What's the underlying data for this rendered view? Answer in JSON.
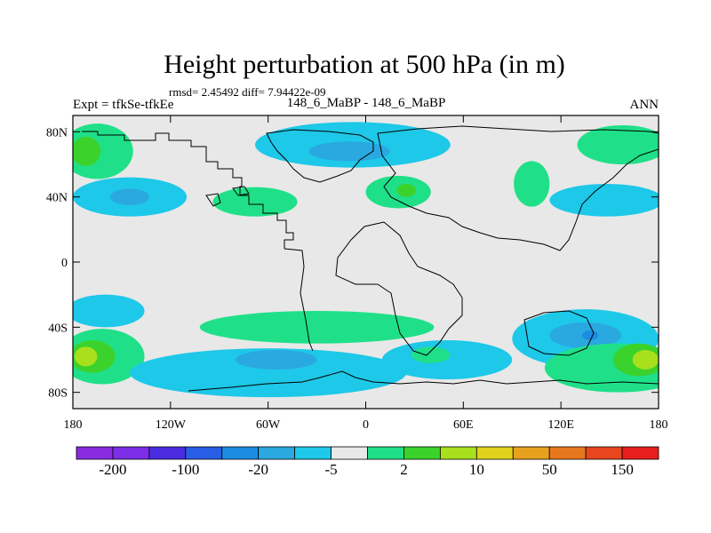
{
  "chart_data": {
    "type": "heatmap",
    "title": "Height perturbation at 500 hPa (in m)",
    "stats": "rmsd= 2.45492 diff= 7.94422e-09",
    "left_label": "Expt = tfkSe-tfkEe",
    "center_label": "148_6_MaBP - 148_6_MaBP",
    "right_label": "ANN",
    "x_range": [
      -180,
      180
    ],
    "y_range": [
      -90,
      90
    ],
    "x_ticks": [
      {
        "value": -180,
        "label": "180"
      },
      {
        "value": -120,
        "label": "120W"
      },
      {
        "value": -60,
        "label": "60W"
      },
      {
        "value": 0,
        "label": "0"
      },
      {
        "value": 60,
        "label": "60E"
      },
      {
        "value": 120,
        "label": "120E"
      },
      {
        "value": 180,
        "label": "180"
      }
    ],
    "y_ticks": [
      {
        "value": 80,
        "label": "80N"
      },
      {
        "value": 40,
        "label": "40N"
      },
      {
        "value": 0,
        "label": "0"
      },
      {
        "value": -40,
        "label": "40S"
      },
      {
        "value": -80,
        "label": "80S"
      }
    ],
    "colorbar": {
      "colors": [
        "#8a2be2",
        "#7b2ee6",
        "#4b2be0",
        "#2a5de6",
        "#1b8de0",
        "#2aa8e0",
        "#1ec8e8",
        "#e8e8e8",
        "#1fe088",
        "#3cd22c",
        "#a8e01e",
        "#e0d21e",
        "#e8a11e",
        "#e8781e",
        "#e8461e",
        "#e81e1e"
      ],
      "labels": [
        {
          "index": 1,
          "label": "-200"
        },
        {
          "index": 3,
          "label": "-100"
        },
        {
          "index": 5,
          "label": "-20"
        },
        {
          "index": 7,
          "label": "-5"
        },
        {
          "index": 9,
          "label": "2"
        },
        {
          "index": 11,
          "label": "10"
        },
        {
          "index": 13,
          "label": "50"
        },
        {
          "index": 15,
          "label": "150"
        }
      ]
    },
    "regions": [
      {
        "name": "pos-nw",
        "color": "#1fe088",
        "lon": -165,
        "lat": 68,
        "rx": 22,
        "ry": 17
      },
      {
        "name": "pos-nw-core",
        "color": "#3cd22c",
        "lon": -172,
        "lat": 68,
        "rx": 9,
        "ry": 9
      },
      {
        "name": "neg-pacific-n",
        "color": "#1ec8e8",
        "lon": -145,
        "lat": 40,
        "rx": 35,
        "ry": 12
      },
      {
        "name": "neg-pacific-n-core",
        "color": "#2aa8e0",
        "lon": -145,
        "lat": 40,
        "rx": 12,
        "ry": 5
      },
      {
        "name": "pos-america-n",
        "color": "#1fe088",
        "lon": -68,
        "lat": 37,
        "rx": 26,
        "ry": 9
      },
      {
        "name": "neg-arctic",
        "color": "#1ec8e8",
        "lon": -8,
        "lat": 72,
        "rx": 60,
        "ry": 14
      },
      {
        "name": "neg-arctic-core",
        "color": "#2aa8e0",
        "lon": -10,
        "lat": 68,
        "rx": 25,
        "ry": 6
      },
      {
        "name": "pos-europe",
        "color": "#1fe088",
        "lon": 20,
        "lat": 43,
        "rx": 20,
        "ry": 10
      },
      {
        "name": "pos-europe-core",
        "color": "#3cd22c",
        "lon": 25,
        "lat": 44,
        "rx": 6,
        "ry": 4
      },
      {
        "name": "pos-asia",
        "color": "#1fe088",
        "lon": 102,
        "lat": 48,
        "rx": 11,
        "ry": 14
      },
      {
        "name": "pos-ne",
        "color": "#1fe088",
        "lon": 158,
        "lat": 72,
        "rx": 28,
        "ry": 12
      },
      {
        "name": "neg-ne",
        "color": "#1ec8e8",
        "lon": 148,
        "lat": 38,
        "rx": 35,
        "ry": 10
      },
      {
        "name": "neg-sw",
        "color": "#1ec8e8",
        "lon": -160,
        "lat": -30,
        "rx": 24,
        "ry": 10
      },
      {
        "name": "pos-sw",
        "color": "#1fe088",
        "lon": -162,
        "lat": -58,
        "rx": 26,
        "ry": 17
      },
      {
        "name": "pos-sw-mid",
        "color": "#3cd22c",
        "lon": -168,
        "lat": -58,
        "rx": 14,
        "ry": 10
      },
      {
        "name": "pos-sw-core",
        "color": "#a8e01e",
        "lon": -172,
        "lat": -58,
        "rx": 7,
        "ry": 6
      },
      {
        "name": "pos-south-atl",
        "color": "#1fe088",
        "lon": -30,
        "lat": -40,
        "rx": 72,
        "ry": 10
      },
      {
        "name": "neg-south-pac",
        "color": "#1ec8e8",
        "lon": -60,
        "lat": -68,
        "rx": 85,
        "ry": 15
      },
      {
        "name": "neg-south-pac-core",
        "color": "#2aa8e0",
        "lon": -55,
        "lat": -60,
        "rx": 25,
        "ry": 6
      },
      {
        "name": "neg-south-ind",
        "color": "#1ec8e8",
        "lon": 50,
        "lat": -60,
        "rx": 40,
        "ry": 12
      },
      {
        "name": "pos-south-ind",
        "color": "#1fe088",
        "lon": 40,
        "lat": -57,
        "rx": 12,
        "ry": 5
      },
      {
        "name": "neg-se",
        "color": "#1ec8e8",
        "lon": 135,
        "lat": -47,
        "rx": 45,
        "ry": 18
      },
      {
        "name": "neg-se-core",
        "color": "#2aa8e0",
        "lon": 135,
        "lat": -45,
        "rx": 22,
        "ry": 8
      },
      {
        "name": "neg-se-center",
        "color": "#1b8de0",
        "lon": 138,
        "lat": -45,
        "rx": 5,
        "ry": 3
      },
      {
        "name": "pos-se",
        "color": "#1fe088",
        "lon": 155,
        "lat": -65,
        "rx": 45,
        "ry": 15
      },
      {
        "name": "pos-se-mid",
        "color": "#3cd22c",
        "lon": 168,
        "lat": -60,
        "rx": 16,
        "ry": 10
      },
      {
        "name": "pos-se-core",
        "color": "#a8e01e",
        "lon": 172,
        "lat": -60,
        "rx": 8,
        "ry": 6
      }
    ]
  }
}
